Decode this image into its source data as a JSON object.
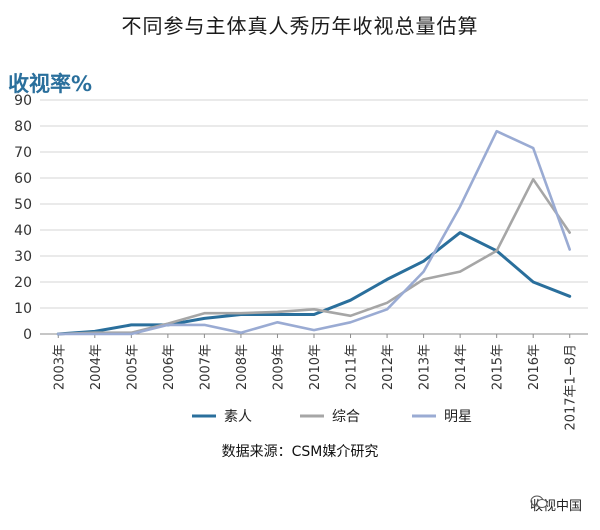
{
  "title": "不同参与主体真人秀历年收视总量估算",
  "source_note": "数据来源：CSM媒介研究",
  "watermark": {
    "text": "收视中国",
    "icon": "wechat-icon"
  },
  "chart_data": {
    "type": "line",
    "ylabel": "收视率%",
    "xlabel": "",
    "ylim": [
      0,
      90
    ],
    "yticks": [
      0,
      10,
      20,
      30,
      40,
      50,
      60,
      70,
      80,
      90
    ],
    "grid": true,
    "legend_position": "bottom",
    "categories": [
      "2003年",
      "2004年",
      "2005年",
      "2006年",
      "2007年",
      "2008年",
      "2009年",
      "2010年",
      "2011年",
      "2012年",
      "2013年",
      "2014年",
      "2015年",
      "2016年",
      "2017年1−8月"
    ],
    "series": [
      {
        "name": "素人",
        "color": "#2a6f9c",
        "values": [
          0,
          1,
          3.5,
          3.5,
          6,
          7.5,
          7.5,
          7.5,
          13,
          21,
          28,
          39,
          32,
          20,
          14.5
        ]
      },
      {
        "name": "综合",
        "color": "#a6a6a6",
        "values": [
          0,
          0.5,
          0.5,
          4,
          8,
          8,
          8.5,
          9.5,
          7,
          12,
          21,
          24,
          32,
          59.5,
          39
        ]
      },
      {
        "name": "明星",
        "color": "#9aabd3",
        "values": [
          0,
          0,
          0,
          3.5,
          3.5,
          0.5,
          4.5,
          1.5,
          4.5,
          9.5,
          24,
          49,
          78,
          71.5,
          32.5
        ]
      }
    ]
  }
}
